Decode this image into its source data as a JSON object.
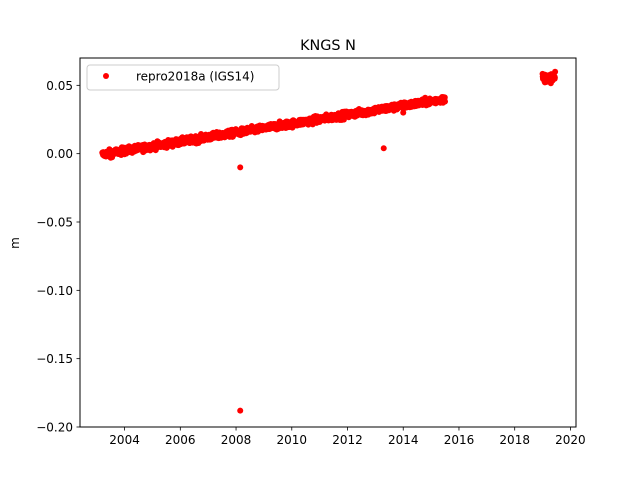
{
  "chart_data": {
    "type": "scatter",
    "title": "KNGS N",
    "xlabel": "",
    "ylabel": "m",
    "xlim": [
      2002.4,
      2020.2
    ],
    "ylim": [
      -0.2,
      0.07
    ],
    "xticks": [
      2004,
      2006,
      2008,
      2010,
      2012,
      2014,
      2016,
      2018,
      2020
    ],
    "yticks": [
      -0.2,
      -0.15,
      -0.1,
      -0.05,
      0.0,
      0.05
    ],
    "ytick_labels": [
      "−0.20",
      "−0.15",
      "−0.10",
      "−0.05",
      "0.00",
      "0.05"
    ],
    "grid": false,
    "legend": "top-left",
    "series": [
      {
        "name": "repro2018a (IGS14)",
        "color": "#ff0000",
        "marker": "circle",
        "trend": {
          "x_start": 2003.2,
          "x_end": 2015.5,
          "y_start": -0.0005,
          "y_end": 0.04,
          "scatter": 0.0025
        },
        "cluster": {
          "x_start": 2019.0,
          "x_end": 2019.45,
          "y_center": 0.0555,
          "scatter": 0.0015
        },
        "outliers": [
          {
            "x": 2008.15,
            "y": -0.01
          },
          {
            "x": 2008.15,
            "y": -0.188
          },
          {
            "x": 2013.3,
            "y": 0.004
          },
          {
            "x": 2014.0,
            "y": 0.03
          },
          {
            "x": 2003.5,
            "y": -0.003
          }
        ]
      }
    ]
  }
}
